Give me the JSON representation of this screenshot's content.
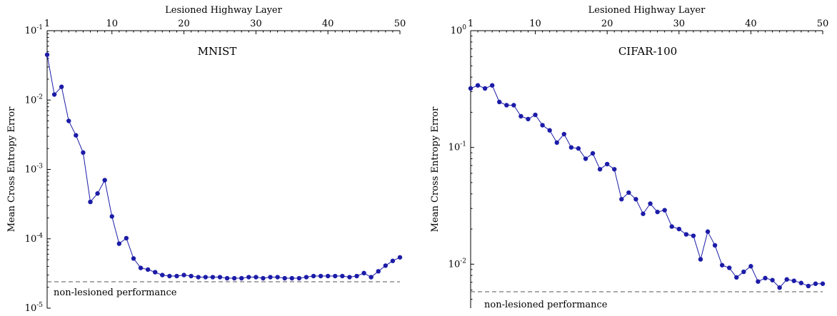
{
  "chart_data": [
    {
      "type": "line",
      "title": "MNIST",
      "xlabel": "Lesioned Highway Layer",
      "ylabel": "Mean Cross Entropy Error",
      "xlim": [
        1,
        50
      ],
      "xticks": [
        1,
        10,
        20,
        30,
        40,
        50
      ],
      "ylim": [
        1e-05,
        0.1
      ],
      "yscale": "log",
      "yticks": [
        {
          "value": 0.1,
          "base": "10",
          "exp": "-1"
        },
        {
          "value": 0.01,
          "base": "10",
          "exp": "-2"
        },
        {
          "value": 0.001,
          "base": "10",
          "exp": "-3"
        },
        {
          "value": 0.0001,
          "base": "10",
          "exp": "-4"
        },
        {
          "value": 1e-05,
          "base": "10",
          "exp": "-5"
        }
      ],
      "color": "#1c1ca8",
      "baseline": {
        "value": 2.4e-05,
        "label": "non-lesioned performance"
      },
      "x": [
        1,
        2,
        3,
        4,
        5,
        6,
        7,
        8,
        9,
        10,
        11,
        12,
        13,
        14,
        15,
        16,
        17,
        18,
        19,
        20,
        21,
        22,
        23,
        24,
        25,
        26,
        27,
        28,
        29,
        30,
        31,
        32,
        33,
        34,
        35,
        36,
        37,
        38,
        39,
        40,
        41,
        42,
        43,
        44,
        45,
        46,
        47,
        48,
        49,
        50
      ],
      "values": [
        0.045,
        0.012,
        0.0155,
        0.005,
        0.0031,
        0.00175,
        0.00034,
        0.00045,
        0.0007,
        0.00021,
        8.5e-05,
        0.000102,
        5.2e-05,
        3.8e-05,
        3.6e-05,
        3.3e-05,
        3e-05,
        2.9e-05,
        2.9e-05,
        3e-05,
        2.9e-05,
        2.8e-05,
        2.8e-05,
        2.8e-05,
        2.8e-05,
        2.7e-05,
        2.7e-05,
        2.7e-05,
        2.8e-05,
        2.8e-05,
        2.7e-05,
        2.8e-05,
        2.8e-05,
        2.7e-05,
        2.7e-05,
        2.7e-05,
        2.8e-05,
        2.9e-05,
        2.9e-05,
        2.9e-05,
        2.9e-05,
        2.9e-05,
        2.8e-05,
        2.9e-05,
        3.2e-05,
        2.8e-05,
        3.4e-05,
        4.1e-05,
        4.8e-05,
        5.4e-05
      ]
    },
    {
      "type": "line",
      "title": "CIFAR-100",
      "xlabel": "Lesioned Highway Layer",
      "ylabel": "Mean Cross Entropy Error",
      "xlim": [
        1,
        50
      ],
      "xticks": [
        1,
        10,
        20,
        30,
        40,
        50
      ],
      "ylim": [
        0.0042,
        1
      ],
      "yscale": "log",
      "yticks": [
        {
          "value": 1,
          "base": "10",
          "exp": "0"
        },
        {
          "value": 0.1,
          "base": "10",
          "exp": "-1"
        },
        {
          "value": 0.01,
          "base": "10",
          "exp": "-2"
        }
      ],
      "color": "#1c1ca8",
      "baseline": {
        "value": 0.0058,
        "label": "non-lesioned performance"
      },
      "x": [
        1,
        2,
        3,
        4,
        5,
        6,
        7,
        8,
        9,
        10,
        11,
        12,
        13,
        14,
        15,
        16,
        17,
        18,
        19,
        20,
        21,
        22,
        23,
        24,
        25,
        26,
        27,
        28,
        29,
        30,
        31,
        32,
        33,
        34,
        35,
        36,
        37,
        38,
        39,
        40,
        41,
        42,
        43,
        44,
        45,
        46,
        47,
        48,
        49,
        50
      ],
      "values": [
        0.32,
        0.34,
        0.32,
        0.34,
        0.245,
        0.23,
        0.23,
        0.185,
        0.175,
        0.19,
        0.155,
        0.14,
        0.11,
        0.13,
        0.1,
        0.098,
        0.08,
        0.089,
        0.065,
        0.072,
        0.065,
        0.036,
        0.041,
        0.036,
        0.027,
        0.033,
        0.028,
        0.029,
        0.021,
        0.02,
        0.018,
        0.0175,
        0.011,
        0.019,
        0.0145,
        0.0098,
        0.0093,
        0.0077,
        0.0086,
        0.0096,
        0.0071,
        0.0076,
        0.0073,
        0.0063,
        0.0074,
        0.0072,
        0.0069,
        0.0065,
        0.0068,
        0.0068
      ]
    }
  ]
}
